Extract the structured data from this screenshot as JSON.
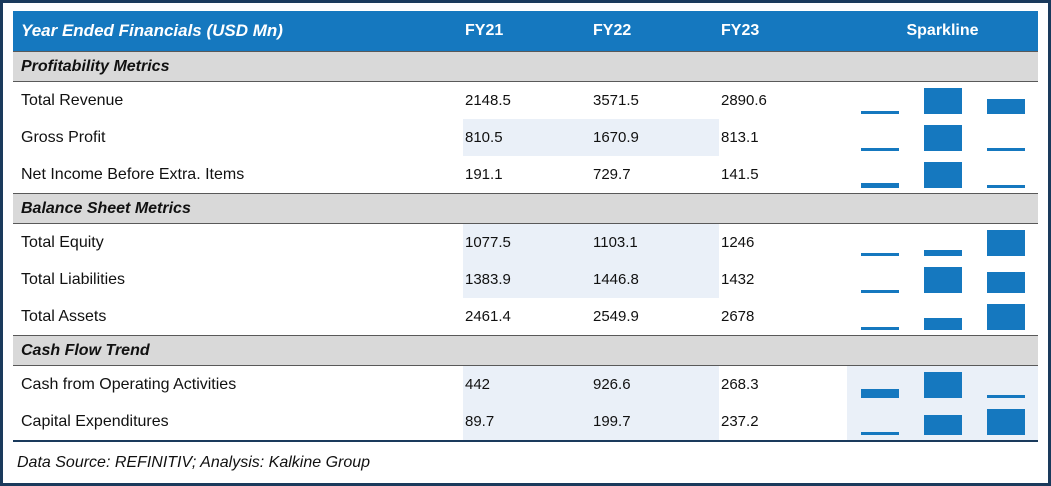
{
  "header": {
    "title": "Year Ended Financials (USD Mn)",
    "columns": [
      "FY21",
      "FY22",
      "FY23"
    ],
    "sparkline_label": "Sparkline"
  },
  "footer": {
    "text": "Data Source: REFINITIV; Analysis: Kalkine Group"
  },
  "colors": {
    "header_bg": "#1578BF",
    "header_text": "#FFFFFF",
    "section_bg": "#D9D9D9",
    "row_band": "#EAF0F8",
    "sparkline_bar": "#1578BF",
    "outer_border": "#1A3A5C"
  },
  "chart_data": {
    "type": "table",
    "title": "Year Ended Financials (USD Mn)",
    "columns": [
      "FY21",
      "FY22",
      "FY23"
    ],
    "sparkline_type": "bar",
    "sparkline_scale": "min-to-max per row",
    "sections": [
      {
        "label": "Profitability Metrics",
        "rows": [
          {
            "label": "Total Revenue",
            "values": [
              2148.5,
              3571.5,
              2890.6
            ]
          },
          {
            "label": "Gross Profit",
            "values": [
              810.5,
              1670.9,
              813.1
            ]
          },
          {
            "label": "Net Income Before Extra. Items",
            "values": [
              191.1,
              729.7,
              141.5
            ]
          }
        ]
      },
      {
        "label": "Balance Sheet Metrics",
        "rows": [
          {
            "label": "Total Equity",
            "values": [
              1077.5,
              1103.1,
              1246
            ]
          },
          {
            "label": "Total Liabilities",
            "values": [
              1383.9,
              1446.8,
              1432
            ]
          },
          {
            "label": "Total Assets",
            "values": [
              2461.4,
              2549.9,
              2678
            ]
          }
        ]
      },
      {
        "label": "Cash Flow Trend",
        "rows": [
          {
            "label": "Cash from Operating Activities",
            "values": [
              442,
              926.6,
              268.3
            ]
          },
          {
            "label": "Capital Expenditures",
            "values": [
              89.7,
              199.7,
              237.2
            ]
          }
        ]
      }
    ]
  }
}
